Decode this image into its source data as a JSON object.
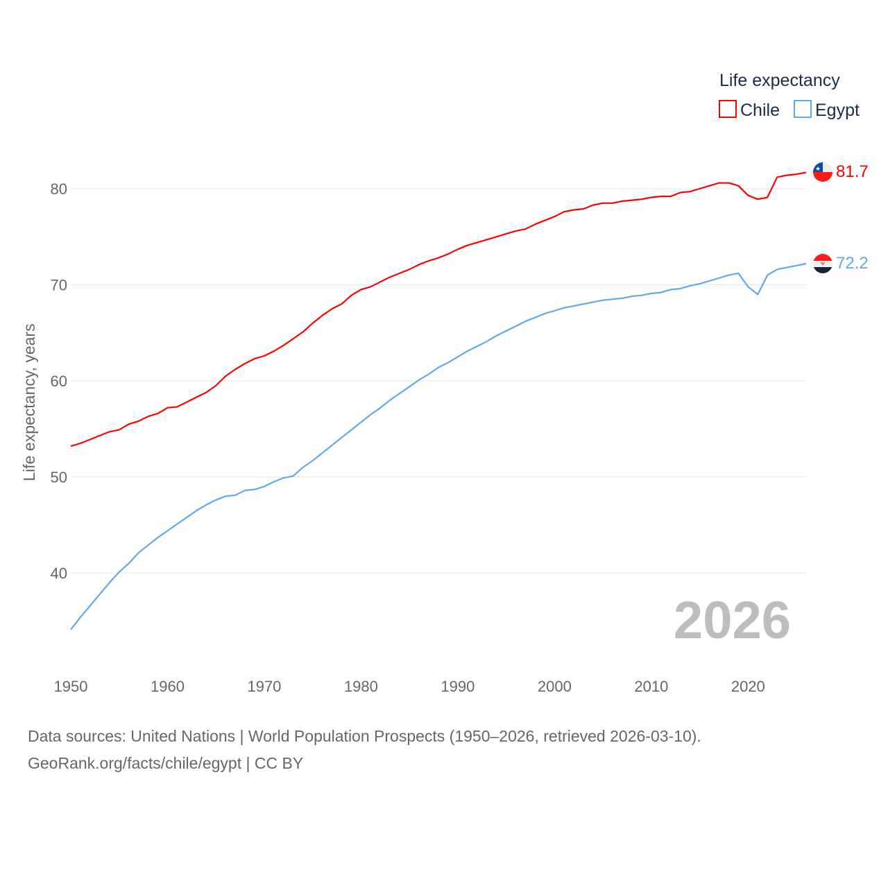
{
  "chart_data": {
    "type": "line",
    "title": "",
    "xlabel": "",
    "ylabel": "Life expectancy, years",
    "xlim": [
      1950,
      2026
    ],
    "ylim": [
      33,
      87
    ],
    "xticks": [
      1950,
      1960,
      1970,
      1980,
      1990,
      2000,
      2010,
      2020
    ],
    "yticks": [
      40,
      50,
      60,
      70,
      80
    ],
    "grid": "horizontal",
    "legend": {
      "title": "Life expectancy",
      "placement": "top-right"
    },
    "year_watermark": "2026",
    "colors": {
      "Chile": "#ff0000",
      "Egypt": "#5fa8ee"
    },
    "x": [
      1950,
      1951,
      1952,
      1953,
      1954,
      1955,
      1956,
      1957,
      1958,
      1959,
      1960,
      1961,
      1962,
      1963,
      1964,
      1965,
      1966,
      1967,
      1968,
      1969,
      1970,
      1971,
      1972,
      1973,
      1974,
      1975,
      1976,
      1977,
      1978,
      1979,
      1980,
      1981,
      1982,
      1983,
      1984,
      1985,
      1986,
      1987,
      1988,
      1989,
      1990,
      1991,
      1992,
      1993,
      1994,
      1995,
      1996,
      1997,
      1998,
      1999,
      2000,
      2001,
      2002,
      2003,
      2004,
      2005,
      2006,
      2007,
      2008,
      2009,
      2010,
      2011,
      2012,
      2013,
      2014,
      2015,
      2016,
      2017,
      2018,
      2019,
      2020,
      2021,
      2022,
      2023,
      2024,
      2025,
      2026
    ],
    "series": [
      {
        "name": "Chile",
        "end_label": "81.7",
        "values": [
          53.2,
          53.5,
          53.9,
          54.3,
          54.7,
          54.9,
          55.5,
          55.8,
          56.3,
          56.6,
          57.2,
          57.3,
          57.8,
          58.3,
          58.8,
          59.5,
          60.5,
          61.2,
          61.8,
          62.3,
          62.6,
          63.1,
          63.7,
          64.4,
          65.1,
          66.0,
          66.8,
          67.5,
          68.0,
          68.9,
          69.5,
          69.8,
          70.3,
          70.8,
          71.2,
          71.6,
          72.1,
          72.5,
          72.8,
          73.2,
          73.7,
          74.1,
          74.4,
          74.7,
          75.0,
          75.3,
          75.6,
          75.8,
          76.3,
          76.7,
          77.1,
          77.6,
          77.8,
          77.9,
          78.3,
          78.5,
          78.5,
          78.7,
          78.8,
          78.9,
          79.1,
          79.2,
          79.2,
          79.6,
          79.7,
          80.0,
          80.3,
          80.6,
          80.6,
          80.3,
          79.3,
          78.9,
          79.1,
          81.2,
          81.4,
          81.5,
          81.7
        ]
      },
      {
        "name": "Egypt",
        "end_label": "72.2",
        "values": [
          34.1,
          35.4,
          36.6,
          37.8,
          39.0,
          40.1,
          41.0,
          42.1,
          42.9,
          43.7,
          44.4,
          45.1,
          45.8,
          46.5,
          47.1,
          47.6,
          48.0,
          48.1,
          48.6,
          48.7,
          49.0,
          49.5,
          49.9,
          50.1,
          51.0,
          51.7,
          52.5,
          53.3,
          54.1,
          54.9,
          55.7,
          56.5,
          57.2,
          58.0,
          58.7,
          59.4,
          60.1,
          60.7,
          61.4,
          61.9,
          62.5,
          63.1,
          63.6,
          64.1,
          64.7,
          65.2,
          65.7,
          66.2,
          66.6,
          67.0,
          67.3,
          67.6,
          67.8,
          68.0,
          68.2,
          68.4,
          68.5,
          68.6,
          68.8,
          68.9,
          69.1,
          69.2,
          69.5,
          69.6,
          69.9,
          70.1,
          70.4,
          70.7,
          71.0,
          71.2,
          69.8,
          69.0,
          71.0,
          71.6,
          71.8,
          72.0,
          72.2
        ]
      }
    ]
  },
  "footer": {
    "line1": "Data sources: United Nations | World Population Prospects (1950–2026, retrieved 2026-03-10).",
    "line2": "GeoRank.org/facts/chile/egypt | CC BY"
  }
}
